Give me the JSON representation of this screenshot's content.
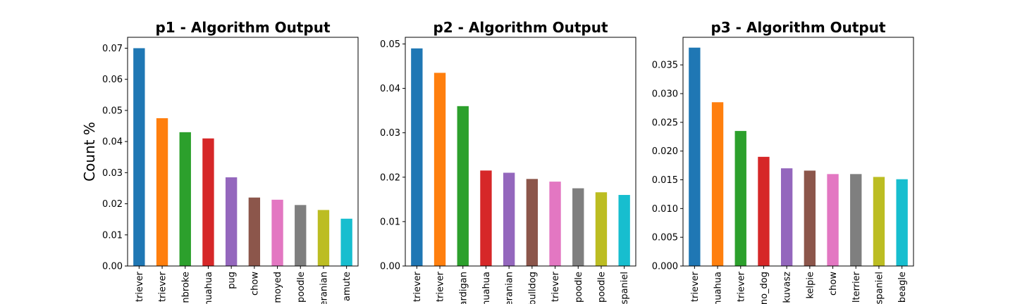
{
  "chart_data": [
    {
      "type": "bar",
      "title": "p1 - Algorithm Output",
      "ylabel": "Count %",
      "xlabel": "",
      "ylim": [
        0,
        0.0735
      ],
      "yticks": [
        0.0,
        0.01,
        0.02,
        0.03,
        0.04,
        0.05,
        0.06,
        0.07
      ],
      "ytick_labels": [
        "0.00",
        "0.01",
        "0.02",
        "0.03",
        "0.04",
        "0.05",
        "0.06",
        "0.07"
      ],
      "categories": [
        "triever",
        "triever",
        "nbroke",
        "nuahua",
        "pug",
        "chow",
        "moyed",
        "poodle",
        "eranian",
        "amute"
      ],
      "values": [
        0.07,
        0.0475,
        0.043,
        0.041,
        0.0285,
        0.022,
        0.0213,
        0.0196,
        0.018,
        0.0152
      ],
      "legend": false,
      "grid": false
    },
    {
      "type": "bar",
      "title": "p2 - Algorithm Output",
      "ylabel": "",
      "xlabel": "",
      "ylim": [
        0,
        0.0515
      ],
      "yticks": [
        0.0,
        0.01,
        0.02,
        0.03,
        0.04,
        0.05
      ],
      "ytick_labels": [
        "0.00",
        "0.01",
        "0.02",
        "0.03",
        "0.04",
        "0.05"
      ],
      "categories": [
        "triever",
        "triever",
        "ardigan",
        "nuahua",
        "eranian",
        "bulldog",
        "triever",
        "poodle",
        "poodle",
        "spaniel"
      ],
      "values": [
        0.049,
        0.0435,
        0.036,
        0.0215,
        0.021,
        0.0196,
        0.019,
        0.0175,
        0.0166,
        0.016
      ],
      "legend": false,
      "grid": false
    },
    {
      "type": "bar",
      "title": "p3 - Algorithm Output",
      "ylabel": "",
      "xlabel": "",
      "ylim": [
        0,
        0.0398
      ],
      "yticks": [
        0.0,
        0.005,
        0.01,
        0.015,
        0.02,
        0.025,
        0.03,
        0.035
      ],
      "ytick_labels": [
        "0.000",
        "0.005",
        "0.010",
        "0.015",
        "0.020",
        "0.025",
        "0.030",
        "0.035"
      ],
      "categories": [
        "triever",
        "nuahua",
        "triever",
        "no_dog",
        "kuvasz",
        "kelpie",
        "chow",
        "lterrier",
        "spaniel",
        "beagle"
      ],
      "values": [
        0.038,
        0.0285,
        0.0235,
        0.019,
        0.017,
        0.0166,
        0.016,
        0.016,
        0.0155,
        0.0151
      ],
      "legend": false,
      "grid": false
    }
  ],
  "colors": [
    "#1f77b4",
    "#ff7f0e",
    "#2ca02c",
    "#d62728",
    "#9467bd",
    "#8c564b",
    "#e377c2",
    "#7f7f7f",
    "#bcbd22",
    "#17becf"
  ]
}
